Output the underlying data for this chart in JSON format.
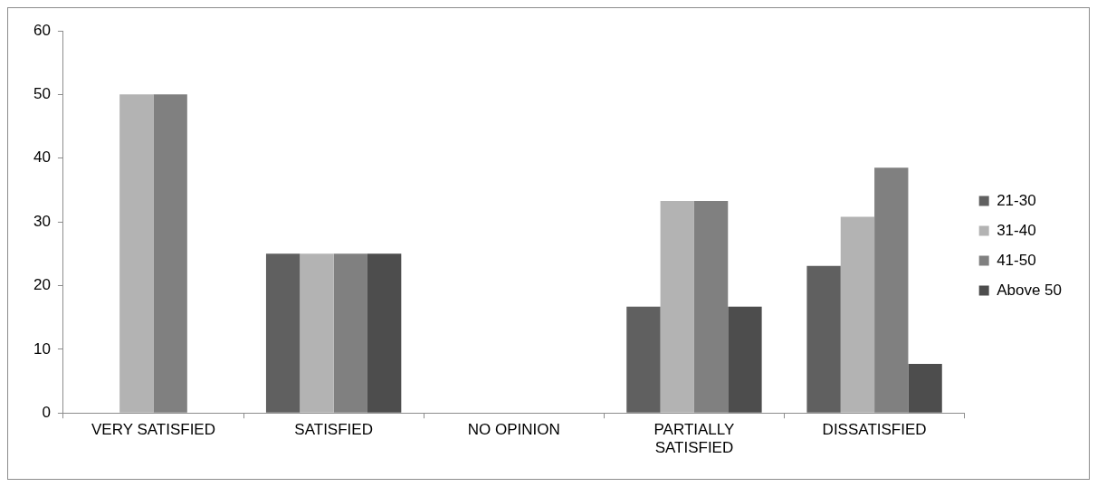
{
  "chart_data": {
    "type": "bar",
    "categories": [
      "VERY SATISFIED",
      "SATISFIED",
      "NO OPINION",
      "PARTIALLY SATISFIED",
      "DISSATISFIED"
    ],
    "series": [
      {
        "name": "21-30",
        "color": "#606060",
        "values": [
          0,
          25,
          0,
          16.7,
          23.1
        ]
      },
      {
        "name": "31-40",
        "color": "#b3b3b3",
        "values": [
          50,
          25,
          0,
          33.3,
          30.8
        ]
      },
      {
        "name": "41-50",
        "color": "#808080",
        "values": [
          50,
          25,
          0,
          33.3,
          38.5
        ]
      },
      {
        "name": "Above 50",
        "color": "#4d4d4d",
        "values": [
          0,
          25,
          0,
          16.7,
          7.7
        ]
      }
    ],
    "ylim": [
      0,
      60
    ],
    "yticks": [
      0,
      10,
      20,
      30,
      40,
      50,
      60
    ],
    "grid": false,
    "legend": "right"
  }
}
